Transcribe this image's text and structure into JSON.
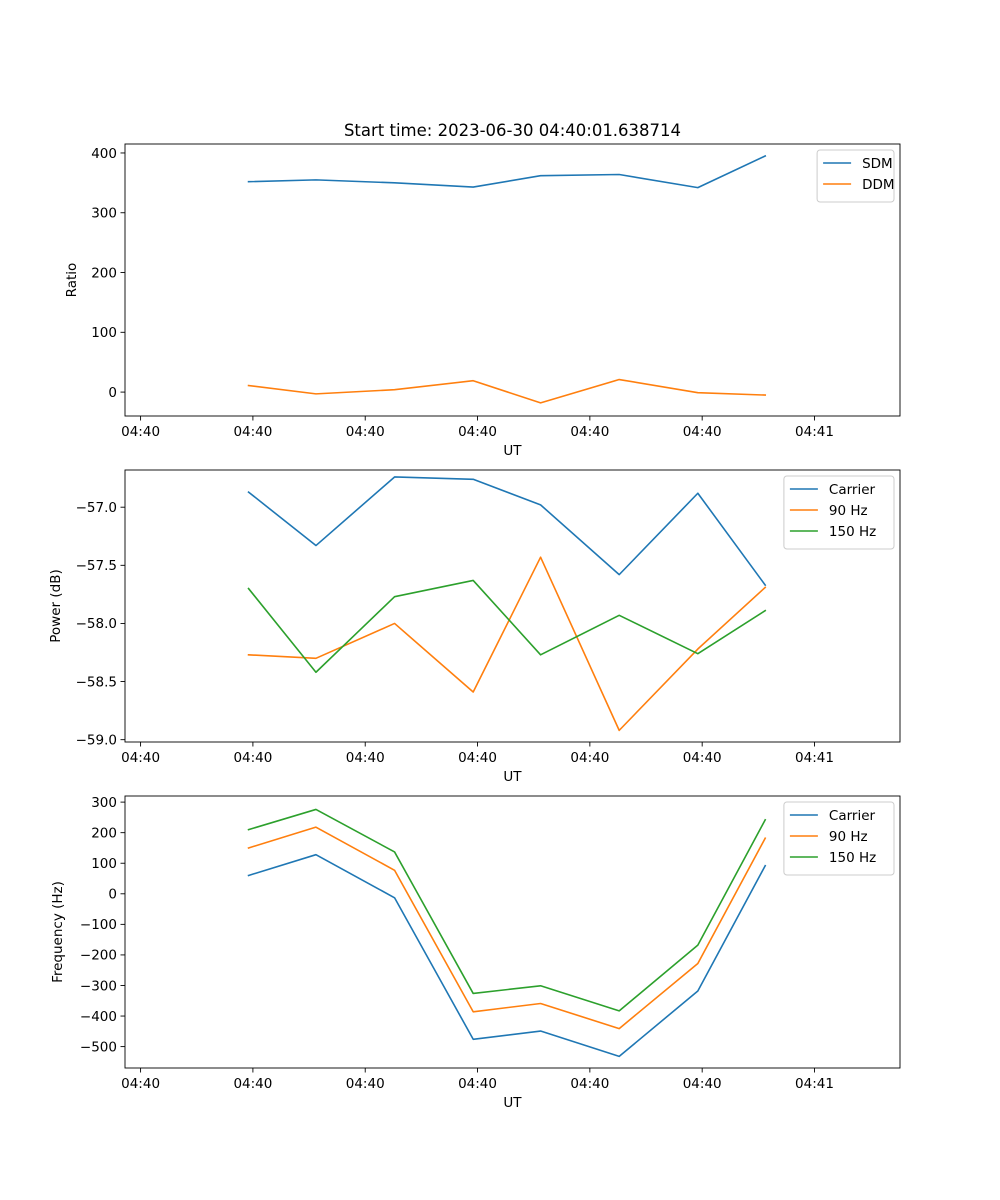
{
  "figure_title": "Start time: 2023-06-30 04:40:01.638714",
  "colors": {
    "blue": "#1f77b4",
    "orange": "#ff7f0e",
    "green": "#2ca02c"
  },
  "chart_data": [
    {
      "type": "line",
      "title": "Start time: 2023-06-30 04:40:01.638714",
      "xlabel": "UT",
      "ylabel": "Ratio",
      "x_tick_labels": [
        "04:40",
        "04:40",
        "04:40",
        "04:40",
        "04:40",
        "04:40",
        "04:41"
      ],
      "x_seconds": [
        2.6,
        3.2,
        3.9,
        4.6,
        5.2,
        5.9,
        6.6,
        7.2
      ],
      "xlim": [
        1.5,
        8.4
      ],
      "x_tick_values": [
        1.638714,
        2.638714,
        3.638714,
        4.638714,
        5.638714,
        6.638714,
        7.638714
      ],
      "ylim": [
        -40,
        415
      ],
      "yticks": [
        0,
        100,
        200,
        300,
        400
      ],
      "y_tick_labels": [
        "0",
        "100",
        "200",
        "300",
        "400"
      ],
      "legend_position": "upper right",
      "grid": false,
      "series": [
        {
          "name": "SDM",
          "color": "#1f77b4",
          "values": [
            352,
            355,
            350,
            343,
            362,
            364,
            342,
            395
          ]
        },
        {
          "name": "DDM",
          "color": "#ff7f0e",
          "values": [
            11,
            -3,
            4,
            19,
            -18,
            21,
            -1,
            -5
          ]
        }
      ]
    },
    {
      "type": "line",
      "title": "",
      "xlabel": "UT",
      "ylabel": "Power (dB)",
      "x_tick_labels": [
        "04:40",
        "04:40",
        "04:40",
        "04:40",
        "04:40",
        "04:40",
        "04:41"
      ],
      "x_seconds": [
        2.6,
        3.2,
        3.9,
        4.6,
        5.2,
        5.9,
        6.6,
        7.2
      ],
      "xlim": [
        1.5,
        8.4
      ],
      "x_tick_values": [
        1.638714,
        2.638714,
        3.638714,
        4.638714,
        5.638714,
        6.638714,
        7.638714
      ],
      "ylim": [
        -59.02,
        -56.68
      ],
      "yticks": [
        -59.0,
        -58.5,
        -58.0,
        -57.5,
        -57.0
      ],
      "y_tick_labels": [
        "−59.0",
        "−58.5",
        "−58.0",
        "−57.5",
        "−57.0"
      ],
      "legend_position": "upper right",
      "grid": false,
      "series": [
        {
          "name": "Carrier",
          "color": "#1f77b4",
          "values": [
            -56.87,
            -57.33,
            -56.74,
            -56.76,
            -56.98,
            -57.58,
            -56.88,
            -57.67
          ]
        },
        {
          "name": "90 Hz",
          "color": "#ff7f0e",
          "values": [
            -58.27,
            -58.3,
            -58.0,
            -58.59,
            -57.43,
            -58.92,
            -58.22,
            -57.69
          ]
        },
        {
          "name": "150 Hz",
          "color": "#2ca02c",
          "values": [
            -57.7,
            -58.42,
            -57.77,
            -57.63,
            -58.27,
            -57.93,
            -58.26,
            -57.89
          ]
        }
      ]
    },
    {
      "type": "line",
      "title": "",
      "xlabel": "UT",
      "ylabel": "Frequency (Hz)",
      "x_tick_labels": [
        "04:40",
        "04:40",
        "04:40",
        "04:40",
        "04:40",
        "04:40",
        "04:41"
      ],
      "x_seconds": [
        2.6,
        3.2,
        3.9,
        4.6,
        5.2,
        5.9,
        6.6,
        7.2
      ],
      "xlim": [
        1.5,
        8.4
      ],
      "x_tick_values": [
        1.638714,
        2.638714,
        3.638714,
        4.638714,
        5.638714,
        6.638714,
        7.638714
      ],
      "ylim": [
        -570,
        320
      ],
      "yticks": [
        -500,
        -400,
        -300,
        -200,
        -100,
        0,
        100,
        200,
        300
      ],
      "y_tick_labels": [
        "−500",
        "−400",
        "−300",
        "−200",
        "−100",
        "0",
        "100",
        "200",
        "300"
      ],
      "legend_position": "upper right",
      "grid": false,
      "series": [
        {
          "name": "Carrier",
          "color": "#1f77b4",
          "values": [
            60,
            128,
            -13,
            -476,
            -449,
            -532,
            -318,
            92
          ]
        },
        {
          "name": "90 Hz",
          "color": "#ff7f0e",
          "values": [
            150,
            218,
            77,
            -386,
            -359,
            -441,
            -228,
            182
          ]
        },
        {
          "name": "150 Hz",
          "color": "#2ca02c",
          "values": [
            210,
            276,
            137,
            -326,
            -301,
            -383,
            -168,
            242
          ]
        }
      ]
    }
  ]
}
